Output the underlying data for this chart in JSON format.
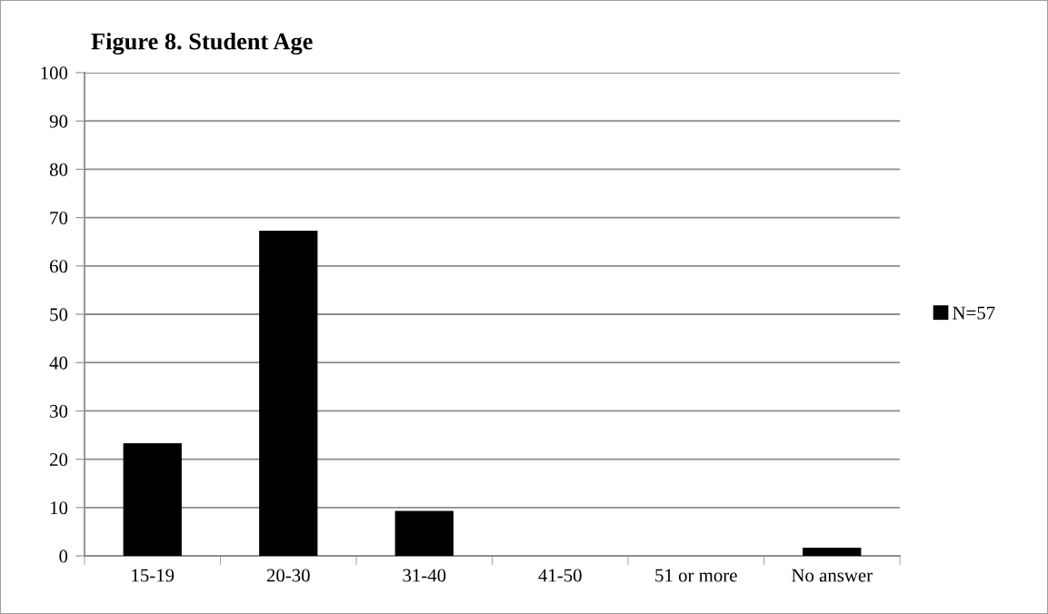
{
  "chart_data": {
    "type": "bar",
    "title": "Figure 8. Student Age",
    "categories": [
      "15-19",
      "20-30",
      "31-40",
      "41-50",
      "51 or more",
      "No answer"
    ],
    "series": [
      {
        "name": "N=57",
        "color": "#000000",
        "values": [
          23.3,
          67.3,
          9.3,
          0,
          0,
          1.7
        ]
      }
    ],
    "ylim": [
      0,
      100
    ],
    "yticks": [
      0,
      10,
      20,
      30,
      40,
      50,
      60,
      70,
      80,
      90,
      100
    ],
    "grid": "y",
    "legend": "right"
  }
}
